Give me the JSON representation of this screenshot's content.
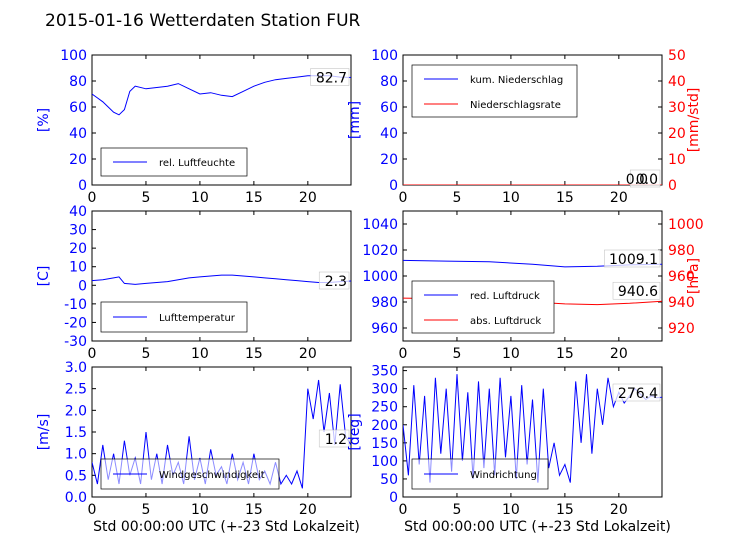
{
  "title": "2015-01-16 Wetterdaten Station FUR",
  "chart_data": [
    {
      "type": "line",
      "ylabel": "[%]",
      "ylim": [
        0,
        100
      ],
      "yticks": [
        0,
        20,
        40,
        60,
        80,
        100
      ],
      "xlim": [
        0,
        24
      ],
      "xticks": [
        0,
        5,
        10,
        15,
        20
      ],
      "series": [
        {
          "name": "rel. Luftfeuchte",
          "color": "#0000ff",
          "x": [
            0,
            0.5,
            1,
            1.5,
            2,
            2.5,
            3,
            3.5,
            4,
            5,
            6,
            7,
            8,
            9,
            10,
            11,
            12,
            13,
            14,
            15,
            16,
            17,
            18,
            19,
            20,
            21,
            22,
            23,
            24
          ],
          "y": [
            70,
            67,
            64,
            60,
            56,
            54,
            58,
            72,
            76,
            74,
            75,
            76,
            78,
            74,
            70,
            71,
            69,
            68,
            72,
            76,
            79,
            81,
            82,
            83,
            84,
            84,
            84,
            83,
            82.7
          ]
        }
      ],
      "last_value": "82.7",
      "legend_loc": "lower-left"
    },
    {
      "type": "line",
      "ylabel": "[mm]",
      "ylabel_right": "[mm/std]",
      "ylim": [
        0,
        100
      ],
      "yticks": [
        0,
        20,
        40,
        60,
        80,
        100
      ],
      "ylim_right": [
        0,
        50
      ],
      "yticks_right": [
        0,
        10,
        20,
        30,
        40,
        50
      ],
      "xlim": [
        0,
        24
      ],
      "xticks": [
        0,
        5,
        10,
        15,
        20
      ],
      "series": [
        {
          "name": "kum. Niederschlag",
          "color": "#0000ff",
          "axis": "left",
          "x": [
            0,
            24
          ],
          "y": [
            0,
            0
          ]
        },
        {
          "name": "Niederschlagsrate",
          "color": "#ff0000",
          "axis": "right",
          "x": [
            0,
            24
          ],
          "y": [
            0,
            0
          ]
        }
      ],
      "last_value": "0.0",
      "last_value_2": "0.0",
      "legend_loc": "upper-left"
    },
    {
      "type": "line",
      "ylabel": "[C]",
      "ylim": [
        -30,
        40
      ],
      "yticks": [
        -30,
        -20,
        -10,
        0,
        10,
        20,
        30,
        40
      ],
      "xlim": [
        0,
        24
      ],
      "xticks": [
        0,
        5,
        10,
        15,
        20
      ],
      "series": [
        {
          "name": "Lufttemperatur",
          "color": "#0000ff",
          "x": [
            0,
            1,
            2,
            2.5,
            3,
            4,
            5,
            6,
            7,
            8,
            9,
            10,
            11,
            12,
            13,
            14,
            15,
            16,
            17,
            18,
            19,
            20,
            21,
            22,
            23,
            24
          ],
          "y": [
            2.5,
            3,
            4,
            4.5,
            1,
            0.5,
            1,
            1.5,
            2,
            3,
            4,
            4.5,
            5,
            5.5,
            5.5,
            5,
            4.5,
            4,
            3.5,
            3,
            2.5,
            2,
            1.5,
            1.5,
            2,
            2.3
          ]
        }
      ],
      "last_value": "2.3",
      "legend_loc": "lower-left"
    },
    {
      "type": "line",
      "ylabel_right": "[hPa]",
      "ylim": [
        950,
        1050
      ],
      "yticks": [
        960,
        980,
        1000,
        1020,
        1040
      ],
      "ylim_right": [
        910,
        1010
      ],
      "yticks_right": [
        920,
        940,
        960,
        980,
        1000
      ],
      "xlim": [
        0,
        24
      ],
      "xticks": [
        0,
        5,
        10,
        15,
        20
      ],
      "series": [
        {
          "name": "red. Luftdruck",
          "color": "#0000ff",
          "axis": "left",
          "x": [
            0,
            4,
            8,
            12,
            15,
            18,
            21,
            24
          ],
          "y": [
            1012,
            1011.5,
            1011,
            1009,
            1007,
            1007.5,
            1008.5,
            1009.1
          ]
        },
        {
          "name": "abs. Luftdruck",
          "color": "#ff0000",
          "axis": "right",
          "x": [
            0,
            4,
            8,
            12,
            15,
            18,
            21,
            24
          ],
          "y": [
            943,
            942.5,
            942,
            940,
            938.5,
            938,
            939,
            940.6
          ]
        }
      ],
      "last_value": "1009.1",
      "last_value_2": "940.6",
      "legend_loc": "lower-left"
    },
    {
      "type": "line",
      "xlabel": "Std 00:00:00 UTC (+-23 Std Lokalzeit)",
      "ylabel": "[m/s]",
      "ylim": [
        0,
        3.0
      ],
      "yticks": [
        0.0,
        0.5,
        1.0,
        1.5,
        2.0,
        2.5,
        3.0
      ],
      "xlim": [
        0,
        24
      ],
      "xticks": [
        0,
        5,
        10,
        15,
        20
      ],
      "series": [
        {
          "name": "Windgeschwindigkeit",
          "color": "#0000ff",
          "x": [
            0,
            0.5,
            1,
            1.5,
            2,
            2.5,
            3,
            3.5,
            4,
            4.5,
            5,
            5.5,
            6,
            6.5,
            7,
            7.5,
            8,
            8.5,
            9,
            9.5,
            10,
            10.5,
            11,
            11.5,
            12,
            12.5,
            13,
            13.5,
            14,
            14.5,
            15,
            15.5,
            16,
            16.5,
            17,
            17.5,
            18,
            18.5,
            19,
            19.5,
            20,
            20.5,
            21,
            21.5,
            22,
            22.5,
            23,
            23.5,
            24
          ],
          "y": [
            0.8,
            0.3,
            1.2,
            0.4,
            1.0,
            0.3,
            1.3,
            0.5,
            0.9,
            0.3,
            1.5,
            0.4,
            1.0,
            0.3,
            1.2,
            0.5,
            0.8,
            0.3,
            1.4,
            0.4,
            0.9,
            0.3,
            1.1,
            0.5,
            0.7,
            0.3,
            1.0,
            0.4,
            0.8,
            0.3,
            1.0,
            0.4,
            0.6,
            0.3,
            0.8,
            0.3,
            0.5,
            0.3,
            0.6,
            0.2,
            2.5,
            1.8,
            2.7,
            1.5,
            2.4,
            1.2,
            2.6,
            1.4,
            1.2
          ]
        }
      ],
      "last_value": "1.2",
      "legend_loc": "lower-left"
    },
    {
      "type": "line",
      "xlabel": "Std 00:00:00 UTC (+-23 Std Lokalzeit)",
      "ylabel": "[deg]",
      "ylim": [
        0,
        360
      ],
      "yticks": [
        0,
        50,
        100,
        150,
        200,
        250,
        300,
        350
      ],
      "xlim": [
        0,
        24
      ],
      "xticks": [
        0,
        5,
        10,
        15,
        20
      ],
      "series": [
        {
          "name": "Windrichtung",
          "color": "#0000ff",
          "x": [
            0,
            0.5,
            1,
            1.5,
            2,
            2.5,
            3,
            3.5,
            4,
            4.5,
            5,
            5.5,
            6,
            6.5,
            7,
            7.5,
            8,
            8.5,
            9,
            9.5,
            10,
            10.5,
            11,
            11.5,
            12,
            12.5,
            13,
            13.5,
            14,
            14.5,
            15,
            15.5,
            16,
            16.5,
            17,
            17.5,
            18,
            18.5,
            19,
            19.5,
            20,
            20.5,
            21,
            21.5,
            22,
            22.5,
            23,
            23.5,
            24
          ],
          "y": [
            200,
            60,
            310,
            90,
            280,
            40,
            330,
            120,
            300,
            70,
            340,
            100,
            290,
            50,
            320,
            80,
            300,
            60,
            330,
            110,
            280,
            50,
            310,
            90,
            270,
            40,
            300,
            80,
            150,
            60,
            90,
            40,
            320,
            150,
            340,
            120,
            300,
            200,
            330,
            250,
            290,
            260,
            280,
            300,
            285,
            270,
            280,
            275,
            276.4
          ]
        }
      ],
      "last_value": "276.4",
      "legend_loc": "lower-left"
    }
  ]
}
